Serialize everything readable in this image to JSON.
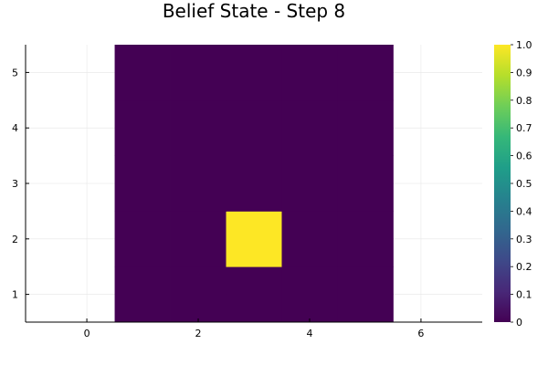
{
  "chart_data": {
    "type": "heatmap",
    "title": "Belief State - Step 8",
    "xlabel": "",
    "ylabel": "",
    "x_centers": [
      1,
      2,
      3,
      4,
      5
    ],
    "y_centers": [
      1,
      2,
      3,
      4,
      5
    ],
    "z": [
      [
        0,
        0,
        0,
        0,
        0
      ],
      [
        0,
        0,
        1,
        0,
        0
      ],
      [
        0,
        0,
        0,
        0,
        0
      ],
      [
        0,
        0,
        0,
        0,
        0
      ],
      [
        0,
        0,
        0,
        0,
        0
      ]
    ],
    "xlim": [
      -1.1,
      7.1
    ],
    "ylim": [
      0.5,
      5.5
    ],
    "xticks": [
      0,
      2,
      4,
      6
    ],
    "yticks": [
      1,
      2,
      3,
      4,
      5
    ],
    "colorbar": {
      "colormap": "viridis",
      "range": [
        0,
        1
      ],
      "ticks": [
        "0",
        "0.1",
        "0.2",
        "0.3",
        "0.4",
        "0.5",
        "0.6",
        "0.7",
        "0.8",
        "0.9",
        "1.0"
      ]
    },
    "grid": true,
    "colors": {
      "low": "#440154",
      "high": "#fde725"
    }
  }
}
